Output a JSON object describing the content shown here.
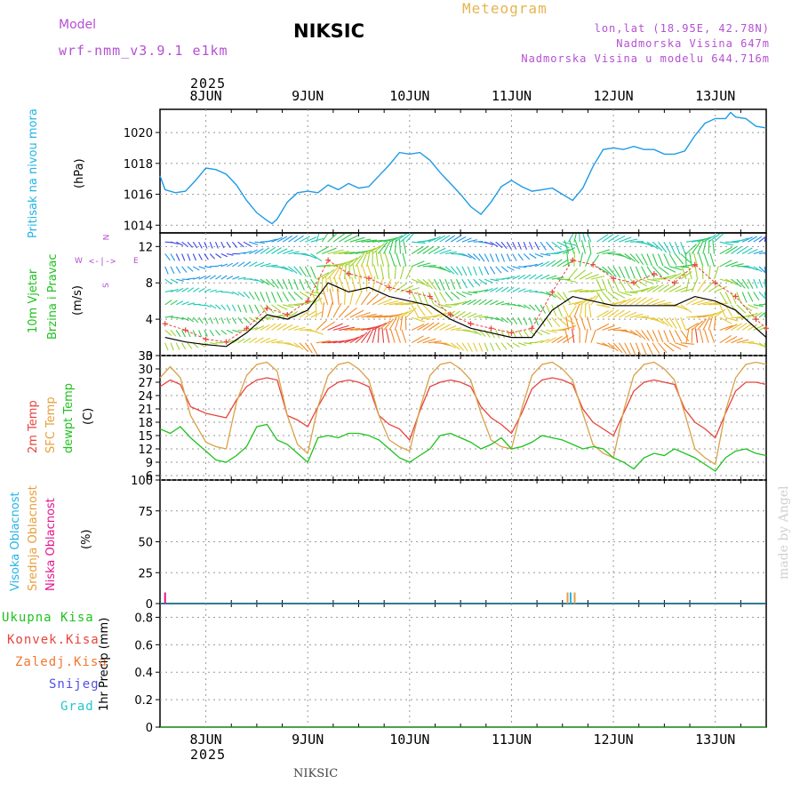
{
  "header": {
    "model_label": "Model",
    "model_name": "wrf-nmm_v3.9.1  e1km",
    "station": "NIKSIC",
    "product": "Meteogram",
    "lonlat": "lon,lat (18.95E, 42.78N)",
    "elevation": "Nadmorska Visina 647m",
    "model_elevation": "Nadmorska Visina u modelu 644.716m",
    "footer_station": "NIKSIC",
    "credit": "made by Angel"
  },
  "time_axis": {
    "year": "2025",
    "days": [
      "8JUN",
      "9JUN",
      "10JUN",
      "11JUN",
      "12JUN",
      "13JUN"
    ]
  },
  "colors": {
    "pressure": "#1e9be6",
    "temp": "#e8443c",
    "sfc_temp": "#d9a24a",
    "dewpt": "#1ec21e",
    "wind_speed": "#000000",
    "gust": "#e8443c",
    "high_cloud": "#23b4e6",
    "mid_cloud": "#e6a03c",
    "low_cloud": "#e6148c",
    "total_precip": "#1ec21e",
    "conv_precip": "#e8443c",
    "frz_precip": "#f07830",
    "snow": "#5050e6",
    "graupel": "#23c8c8",
    "compass": "#b450d2"
  },
  "panels": {
    "pressure": {
      "labels": [
        "Pritisak na nivou mora"
      ],
      "unit": "(hPa)",
      "ticks": [
        "1014",
        "1016",
        "1018",
        "1020"
      ]
    },
    "wind": {
      "labels": [
        "10m Vjetar",
        "Brzina i Pravac"
      ],
      "unit": "(m/s)",
      "ticks": [
        "0",
        "4",
        "8",
        "12"
      ],
      "compass_n": "N",
      "compass_s": "S",
      "compass_e": "E",
      "compass_w": "W",
      "compass_arrows": "<-|->"
    },
    "temp": {
      "labels": [
        "2m Temp",
        "SFC Temp",
        "dewpt Temp"
      ],
      "unit": "(C)",
      "ticks": [
        "6",
        "9",
        "12",
        "15",
        "18",
        "21",
        "24",
        "27",
        "30",
        "33"
      ]
    },
    "cloud": {
      "labels": [
        "Visoka Oblacnost",
        "Srednja Oblacnost",
        "Niska Oblacnost"
      ],
      "unit": "(%)",
      "ticks": [
        "0",
        "25",
        "50",
        "75",
        "100"
      ]
    },
    "precip": {
      "labels": [
        "Ukupna Kisa",
        "Konvek.Kisa",
        "Zaledj.Kisa",
        "Snijeg",
        "Grad"
      ],
      "unit": "1hr Precip (mm)",
      "ticks": [
        "0",
        "0.2",
        "0.4",
        "0.6",
        "0.8"
      ]
    }
  },
  "chart_data": [
    {
      "type": "line",
      "panel": "pressure",
      "ylabel": "(hPa)",
      "ylim": [
        1013.5,
        1021.5
      ],
      "x": [
        7.55,
        7.6,
        7.7,
        7.8,
        7.9,
        8.0,
        8.1,
        8.2,
        8.3,
        8.4,
        8.5,
        8.6,
        8.65,
        8.7,
        8.8,
        8.9,
        9.0,
        9.1,
        9.2,
        9.3,
        9.4,
        9.5,
        9.6,
        9.7,
        9.8,
        9.9,
        10.0,
        10.1,
        10.2,
        10.3,
        10.4,
        10.5,
        10.6,
        10.7,
        10.8,
        10.9,
        11.0,
        11.1,
        11.2,
        11.3,
        11.4,
        11.5,
        11.6,
        11.7,
        11.8,
        11.9,
        12.0,
        12.1,
        12.2,
        12.3,
        12.4,
        12.5,
        12.6,
        12.7,
        12.8,
        12.9,
        13.0,
        13.1,
        13.15,
        13.2,
        13.3,
        13.4,
        13.5
      ],
      "series": [
        {
          "values": [
            1017.2,
            1016.3,
            1016.1,
            1016.2,
            1016.9,
            1017.7,
            1017.6,
            1017.3,
            1016.6,
            1015.6,
            1014.8,
            1014.3,
            1014.1,
            1014.4,
            1015.5,
            1016.1,
            1016.2,
            1016.1,
            1016.6,
            1016.3,
            1016.7,
            1016.4,
            1016.5,
            1017.2,
            1017.9,
            1018.7,
            1018.6,
            1018.7,
            1018.2,
            1017.4,
            1016.7,
            1016.0,
            1015.2,
            1014.7,
            1015.5,
            1016.5,
            1016.9,
            1016.5,
            1016.2,
            1016.3,
            1016.4,
            1016.0,
            1015.6,
            1016.4,
            1017.8,
            1018.9,
            1019.0,
            1018.9,
            1019.1,
            1018.9,
            1018.9,
            1018.6,
            1018.6,
            1018.8,
            1019.8,
            1020.6,
            1020.9,
            1020.9,
            1021.3,
            1021.0,
            1020.9,
            1020.4,
            1020.3
          ]
        }
      ]
    },
    {
      "type": "line",
      "panel": "wind",
      "ylabel": "(m/s)",
      "ylim": [
        0,
        13.5
      ],
      "x": [
        7.6,
        7.8,
        8.0,
        8.2,
        8.4,
        8.6,
        8.8,
        9.0,
        9.2,
        9.4,
        9.6,
        9.8,
        10.0,
        10.2,
        10.4,
        10.6,
        10.8,
        11.0,
        11.2,
        11.4,
        11.6,
        11.8,
        12.0,
        12.2,
        12.4,
        12.6,
        12.8,
        13.0,
        13.2,
        13.4,
        13.5
      ],
      "series": [
        {
          "name": "speed",
          "values": [
            2.0,
            1.5,
            1.2,
            1.0,
            2.5,
            4.5,
            4.0,
            5.0,
            8.0,
            7.0,
            7.5,
            6.5,
            6.0,
            5.5,
            4.0,
            3.0,
            2.5,
            2.0,
            2.0,
            5.0,
            6.5,
            6.0,
            5.5,
            5.5,
            5.5,
            5.5,
            6.5,
            6.0,
            5.0,
            3.0,
            2.0
          ]
        },
        {
          "name": "gust",
          "values": [
            3.5,
            2.8,
            1.8,
            1.5,
            3.0,
            5.2,
            4.5,
            6.0,
            10.5,
            9.0,
            8.5,
            7.5,
            7.0,
            6.5,
            4.5,
            3.5,
            3.0,
            2.5,
            3.0,
            7.0,
            10.5,
            10.0,
            8.5,
            8.0,
            9.0,
            8.0,
            10.0,
            8.0,
            6.5,
            4.0,
            3.0
          ]
        }
      ]
    },
    {
      "type": "line",
      "panel": "temp",
      "ylabel": "(C)",
      "ylim": [
        5,
        33
      ],
      "x": [
        7.55,
        7.65,
        7.75,
        7.85,
        8.0,
        8.1,
        8.2,
        8.3,
        8.4,
        8.5,
        8.6,
        8.7,
        8.8,
        8.9,
        9.0,
        9.1,
        9.2,
        9.3,
        9.4,
        9.5,
        9.6,
        9.7,
        9.8,
        9.9,
        10.0,
        10.1,
        10.2,
        10.3,
        10.4,
        10.5,
        10.6,
        10.7,
        10.8,
        10.9,
        11.0,
        11.1,
        11.2,
        11.3,
        11.4,
        11.5,
        11.6,
        11.7,
        11.8,
        11.9,
        12.0,
        12.1,
        12.2,
        12.3,
        12.4,
        12.5,
        12.6,
        12.7,
        12.8,
        12.9,
        13.0,
        13.1,
        13.2,
        13.3,
        13.4,
        13.5
      ],
      "series": [
        {
          "name": "2m",
          "values": [
            26.0,
            27.5,
            26.5,
            21.5,
            20.0,
            19.5,
            19.0,
            23.0,
            26.0,
            27.5,
            28.0,
            27.5,
            19.5,
            18.5,
            17.0,
            21.5,
            25.5,
            27.0,
            27.5,
            27.0,
            26.0,
            19.5,
            17.5,
            16.5,
            14.0,
            20.5,
            26.0,
            27.0,
            27.5,
            27.0,
            26.0,
            21.5,
            19.0,
            17.5,
            15.5,
            20.0,
            25.5,
            27.5,
            28.0,
            27.5,
            26.5,
            21.0,
            18.0,
            16.5,
            15.0,
            20.0,
            25.0,
            27.0,
            27.5,
            27.0,
            26.5,
            21.0,
            18.0,
            16.5,
            14.5,
            20.0,
            25.0,
            27.0,
            27.0,
            26.5
          ]
        },
        {
          "name": "sfc",
          "values": [
            28.0,
            30.5,
            28.0,
            19.5,
            13.5,
            12.5,
            12.0,
            22.5,
            28.5,
            31.0,
            31.5,
            29.5,
            19.5,
            13.0,
            11.0,
            21.5,
            28.5,
            31.0,
            31.5,
            30.0,
            27.5,
            19.5,
            14.0,
            12.5,
            11.5,
            21.0,
            28.5,
            31.0,
            31.5,
            30.0,
            27.5,
            20.0,
            14.0,
            12.5,
            12.0,
            21.0,
            28.5,
            31.0,
            31.5,
            30.0,
            27.5,
            20.0,
            13.0,
            11.0,
            10.0,
            20.5,
            28.5,
            31.0,
            31.5,
            30.0,
            27.5,
            20.0,
            12.0,
            10.0,
            8.5,
            20.5,
            28.0,
            31.0,
            31.5,
            31.0
          ]
        },
        {
          "name": "dewpt",
          "values": [
            16.5,
            15.5,
            17.0,
            14.5,
            11.5,
            9.5,
            9.0,
            10.5,
            12.5,
            17.0,
            17.5,
            14.0,
            13.0,
            11.0,
            9.0,
            14.5,
            15.0,
            14.5,
            15.5,
            15.5,
            15.0,
            14.0,
            12.0,
            10.0,
            9.0,
            10.5,
            12.0,
            15.0,
            15.5,
            14.5,
            13.5,
            12.0,
            13.0,
            14.5,
            12.0,
            12.5,
            13.5,
            15.0,
            14.5,
            14.0,
            13.0,
            12.0,
            12.5,
            12.0,
            10.0,
            9.0,
            7.5,
            10.0,
            11.0,
            10.5,
            12.0,
            11.0,
            10.0,
            8.5,
            7.0,
            10.0,
            11.5,
            12.0,
            11.0,
            10.5
          ]
        }
      ]
    },
    {
      "type": "bar",
      "panel": "cloud",
      "ylabel": "(%)",
      "ylim": [
        0,
        100
      ],
      "x": [
        7.6,
        11.55,
        11.58,
        11.62
      ],
      "series": [
        {
          "name": "Niska",
          "values": [
            9,
            0,
            0,
            0
          ]
        },
        {
          "name": "Srednja",
          "values": [
            0,
            9,
            0,
            9
          ]
        },
        {
          "name": "Visoka",
          "values": [
            0,
            0,
            9,
            0
          ]
        }
      ]
    },
    {
      "type": "line",
      "panel": "precip",
      "ylabel": "1hr Precip (mm)",
      "ylim": [
        0,
        0.9
      ],
      "x": [
        7.55,
        13.5
      ],
      "series": [
        {
          "name": "Ukupna",
          "values": [
            0,
            0
          ]
        }
      ]
    }
  ]
}
